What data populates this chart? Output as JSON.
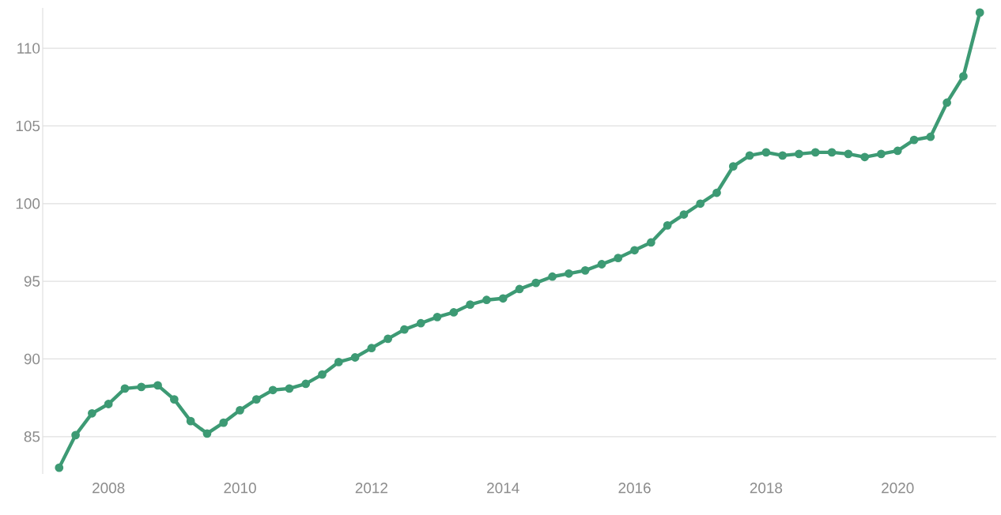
{
  "chart_data": {
    "type": "line",
    "x": [
      2007.25,
      2007.5,
      2007.75,
      2008,
      2008.25,
      2008.5,
      2008.75,
      2009,
      2009.25,
      2009.5,
      2009.75,
      2010,
      2010.25,
      2010.5,
      2010.75,
      2011,
      2011.25,
      2011.5,
      2011.75,
      2012,
      2012.25,
      2012.5,
      2012.75,
      2013,
      2013.25,
      2013.5,
      2013.75,
      2014,
      2014.25,
      2014.5,
      2014.75,
      2015,
      2015.25,
      2015.5,
      2015.75,
      2016,
      2016.25,
      2016.5,
      2016.75,
      2017,
      2017.25,
      2017.5,
      2017.75,
      2018,
      2018.25,
      2018.5,
      2018.75,
      2019,
      2019.25,
      2019.5,
      2019.75,
      2020,
      2020.25,
      2020.5,
      2020.75,
      2021,
      2021.25
    ],
    "series": [
      {
        "color": "#3d9a74",
        "values": [
          83.0,
          85.1,
          86.5,
          87.1,
          88.1,
          88.2,
          88.3,
          87.4,
          86.0,
          85.2,
          85.9,
          86.7,
          87.4,
          88.0,
          88.1,
          88.4,
          89.0,
          89.8,
          90.1,
          90.7,
          91.3,
          91.9,
          92.3,
          92.7,
          93.0,
          93.5,
          93.8,
          93.9,
          94.5,
          94.9,
          95.3,
          95.5,
          95.7,
          96.1,
          96.5,
          97.0,
          97.5,
          98.6,
          99.3,
          100.0,
          100.7,
          102.4,
          103.1,
          103.3,
          103.1,
          103.2,
          103.3,
          103.3,
          103.2,
          103.0,
          103.2,
          103.4,
          104.1,
          104.3,
          106.5,
          108.2,
          112.3
        ]
      }
    ],
    "xlim": [
      2007,
      2021.5
    ],
    "ylim": [
      82.6,
      112.6
    ],
    "xticks": [
      2008,
      2010,
      2012,
      2014,
      2016,
      2018,
      2020
    ],
    "yticks": [
      85,
      90,
      95,
      100,
      105,
      110
    ],
    "grid": "y",
    "marker": "circle",
    "line_style": "solid"
  }
}
